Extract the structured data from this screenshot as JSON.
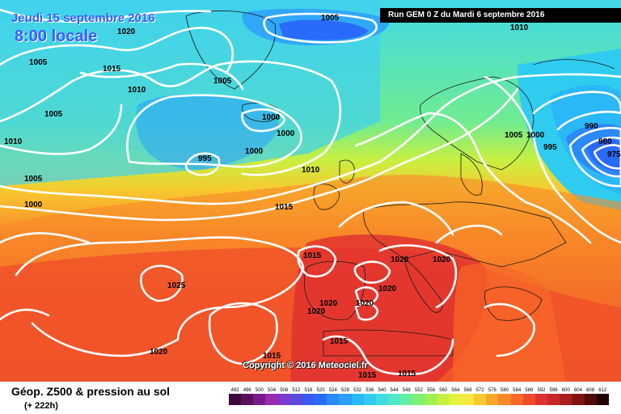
{
  "header": {
    "date": "Jeudi 15 septembre 2016",
    "time": "8:00 locale",
    "run": "Run GEM 0 Z du Mardi 6 septembre 2016"
  },
  "copyright": "Copyright © 2016 Meteociel.fr",
  "legend": {
    "title": "Géop. Z500 & pression au sol",
    "subtitle": "(+ 222h)",
    "scale_values": [
      "492",
      "496",
      "500",
      "504",
      "508",
      "512",
      "516",
      "520",
      "524",
      "528",
      "532",
      "536",
      "540",
      "544",
      "548",
      "552",
      "556",
      "560",
      "564",
      "568",
      "572",
      "576",
      "580",
      "584",
      "588",
      "592",
      "596",
      "600",
      "604",
      "608",
      "612"
    ],
    "scale_colors": [
      "#3b0a3b",
      "#5a0f5a",
      "#7a1a8a",
      "#9a2ab0",
      "#7a3ad0",
      "#5a4ae0",
      "#3a5af0",
      "#2a6afa",
      "#2a8afa",
      "#2aa0fa",
      "#2ab8f8",
      "#30ccf0",
      "#40dce0",
      "#50e8c8",
      "#60f0a0",
      "#80f070",
      "#a0f050",
      "#c8f040",
      "#e8f040",
      "#f8e840",
      "#f8c830",
      "#f8a828",
      "#f88828",
      "#f86828",
      "#f04a2a",
      "#e03030",
      "#c82828",
      "#a81e1e",
      "#801414",
      "#500a0a",
      "#200404"
    ]
  },
  "pressure_labels": [
    "1005",
    "1020",
    "1015",
    "1010",
    "1005",
    "1005",
    "1000",
    "1000",
    "995",
    "1000",
    "1005",
    "1010",
    "995",
    "990",
    "980",
    "975",
    "1005",
    "1000",
    "1010",
    "1015",
    "1015",
    "1020",
    "1020",
    "1025",
    "1020",
    "1020",
    "1020",
    "1020",
    "1020",
    "1015",
    "1015",
    "1015",
    "1005",
    "1010",
    "1000",
    "1015"
  ]
}
